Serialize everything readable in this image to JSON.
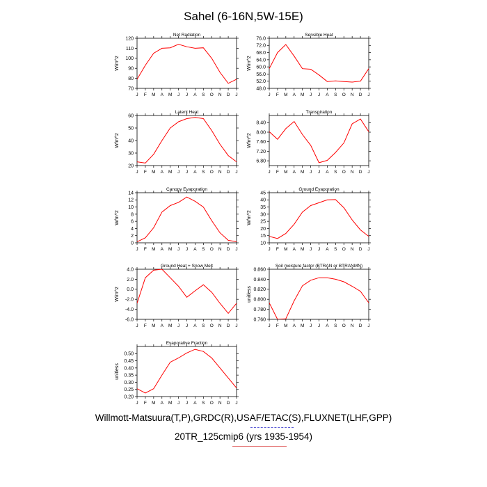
{
  "title": "Sahel (6-16N,5W-15E)",
  "caption_line1": "Willmott-Matsuura(T,P),GRDC(R),USAF/ETAC(S),FLUXNET(LHF,GPP)",
  "caption_line2": "20TR_125cmip6 (yrs 1935-1954)",
  "colors": {
    "line": "#ff0000",
    "underline1": "#5b5bd6",
    "underline2": "#e26a6a"
  },
  "chart_data": [
    {
      "type": "line",
      "title": "Net Radiation",
      "ylabel": "W/m^2",
      "categories": [
        "J",
        "F",
        "M",
        "A",
        "M",
        "J",
        "J",
        "A",
        "S",
        "O",
        "N",
        "D",
        "J"
      ],
      "ylim": [
        70,
        120
      ],
      "yticks": [
        "70",
        "80",
        "90",
        "100",
        "110",
        "120"
      ],
      "values": [
        79,
        93,
        105,
        110,
        110.5,
        114,
        111.5,
        110,
        110.5,
        100,
        86,
        75,
        79
      ]
    },
    {
      "type": "line",
      "title": "Sensible Heat",
      "ylabel": "W/m^2",
      "categories": [
        "J",
        "F",
        "M",
        "A",
        "M",
        "J",
        "J",
        "A",
        "S",
        "O",
        "N",
        "D",
        "J"
      ],
      "ylim": [
        48,
        76
      ],
      "yticks": [
        "48.0",
        "52.0",
        "56.0",
        "60.0",
        "64.0",
        "68.0",
        "72.0",
        "76.0"
      ],
      "values": [
        59,
        68,
        72.5,
        66,
        59,
        58.7,
        55.5,
        51.8,
        52.2,
        51.8,
        51.5,
        52,
        59
      ]
    },
    {
      "type": "line",
      "title": "Latent Heat",
      "ylabel": "W/m^2",
      "categories": [
        "J",
        "F",
        "M",
        "A",
        "M",
        "J",
        "J",
        "A",
        "S",
        "O",
        "N",
        "D",
        "J"
      ],
      "ylim": [
        20,
        60
      ],
      "yticks": [
        "20",
        "30",
        "40",
        "50",
        "60"
      ],
      "values": [
        23,
        22,
        29,
        40,
        50,
        55,
        57.5,
        58.5,
        57.5,
        48,
        37,
        28,
        23
      ]
    },
    {
      "type": "line",
      "title": "Transpiration",
      "ylabel": "W/m^2",
      "categories": [
        "J",
        "F",
        "M",
        "A",
        "M",
        "J",
        "J",
        "A",
        "S",
        "O",
        "N",
        "D",
        "J"
      ],
      "ylim": [
        6.6,
        8.7
      ],
      "yticks": [
        "6.80",
        "7.20",
        "7.60",
        "8.00",
        "8.40"
      ],
      "values": [
        8.02,
        7.7,
        8.15,
        8.45,
        7.9,
        7.45,
        6.72,
        6.82,
        7.15,
        7.55,
        8.35,
        8.55,
        8.02
      ]
    },
    {
      "type": "line",
      "title": "Canopy Evaporation",
      "ylabel": "W/m^2",
      "categories": [
        "J",
        "F",
        "M",
        "A",
        "M",
        "J",
        "J",
        "A",
        "S",
        "O",
        "N",
        "D",
        "J"
      ],
      "ylim": [
        0,
        14
      ],
      "yticks": [
        "0",
        "2",
        "4",
        "6",
        "8",
        "10",
        "12",
        "14"
      ],
      "values": [
        0.3,
        1.4,
        4.2,
        8.6,
        10.4,
        11.3,
        12.8,
        11.6,
        10.0,
        6.2,
        2.8,
        0.7,
        0.3
      ]
    },
    {
      "type": "line",
      "title": "Ground Evaporation",
      "ylabel": "W/m^2",
      "categories": [
        "J",
        "F",
        "M",
        "A",
        "M",
        "J",
        "J",
        "A",
        "S",
        "O",
        "N",
        "D",
        "J"
      ],
      "ylim": [
        10,
        45
      ],
      "yticks": [
        "10",
        "15",
        "20",
        "25",
        "30",
        "35",
        "40",
        "45"
      ],
      "values": [
        14.5,
        13,
        16.5,
        23,
        31.5,
        36,
        38,
        40,
        40.2,
        34.5,
        26,
        19,
        14.5
      ]
    },
    {
      "type": "line",
      "title": "Ground Heat + Snow Melt",
      "ylabel": "W/m^2",
      "categories": [
        "J",
        "F",
        "M",
        "A",
        "M",
        "J",
        "J",
        "A",
        "S",
        "O",
        "N",
        "D",
        "J"
      ],
      "ylim": [
        -6,
        4
      ],
      "yticks": [
        "-6.0",
        "-4.0",
        "-2.0",
        "0.0",
        "2.0",
        "4.0"
      ],
      "values": [
        -2.8,
        2.3,
        3.8,
        4.0,
        2.3,
        0.6,
        -1.6,
        -0.3,
        0.9,
        -0.6,
        -2.8,
        -4.8,
        -2.8
      ]
    },
    {
      "type": "line",
      "title": "Soil moisture factor (BTRAN or BTRANMN)",
      "ylabel": "unitless",
      "categories": [
        "J",
        "F",
        "M",
        "A",
        "M",
        "J",
        "J",
        "A",
        "S",
        "O",
        "N",
        "D",
        "J"
      ],
      "ylim": [
        0.76,
        0.86
      ],
      "yticks": [
        "0.760",
        "0.780",
        "0.800",
        "0.820",
        "0.840",
        "0.860"
      ],
      "values": [
        0.793,
        0.76,
        0.761,
        0.797,
        0.827,
        0.838,
        0.843,
        0.843,
        0.84,
        0.835,
        0.826,
        0.816,
        0.793
      ]
    },
    {
      "type": "line",
      "title": "Evaporative Fraction",
      "ylabel": "unitless",
      "categories": [
        "J",
        "F",
        "M",
        "A",
        "M",
        "J",
        "J",
        "A",
        "S",
        "O",
        "N",
        "D",
        "J"
      ],
      "ylim": [
        0.2,
        0.55
      ],
      "yticks": [
        "0.20",
        "0.25",
        "0.30",
        "0.35",
        "0.40",
        "0.45",
        "0.50"
      ],
      "values": [
        0.255,
        0.225,
        0.255,
        0.35,
        0.44,
        0.47,
        0.505,
        0.53,
        0.515,
        0.47,
        0.4,
        0.33,
        0.26
      ]
    }
  ]
}
